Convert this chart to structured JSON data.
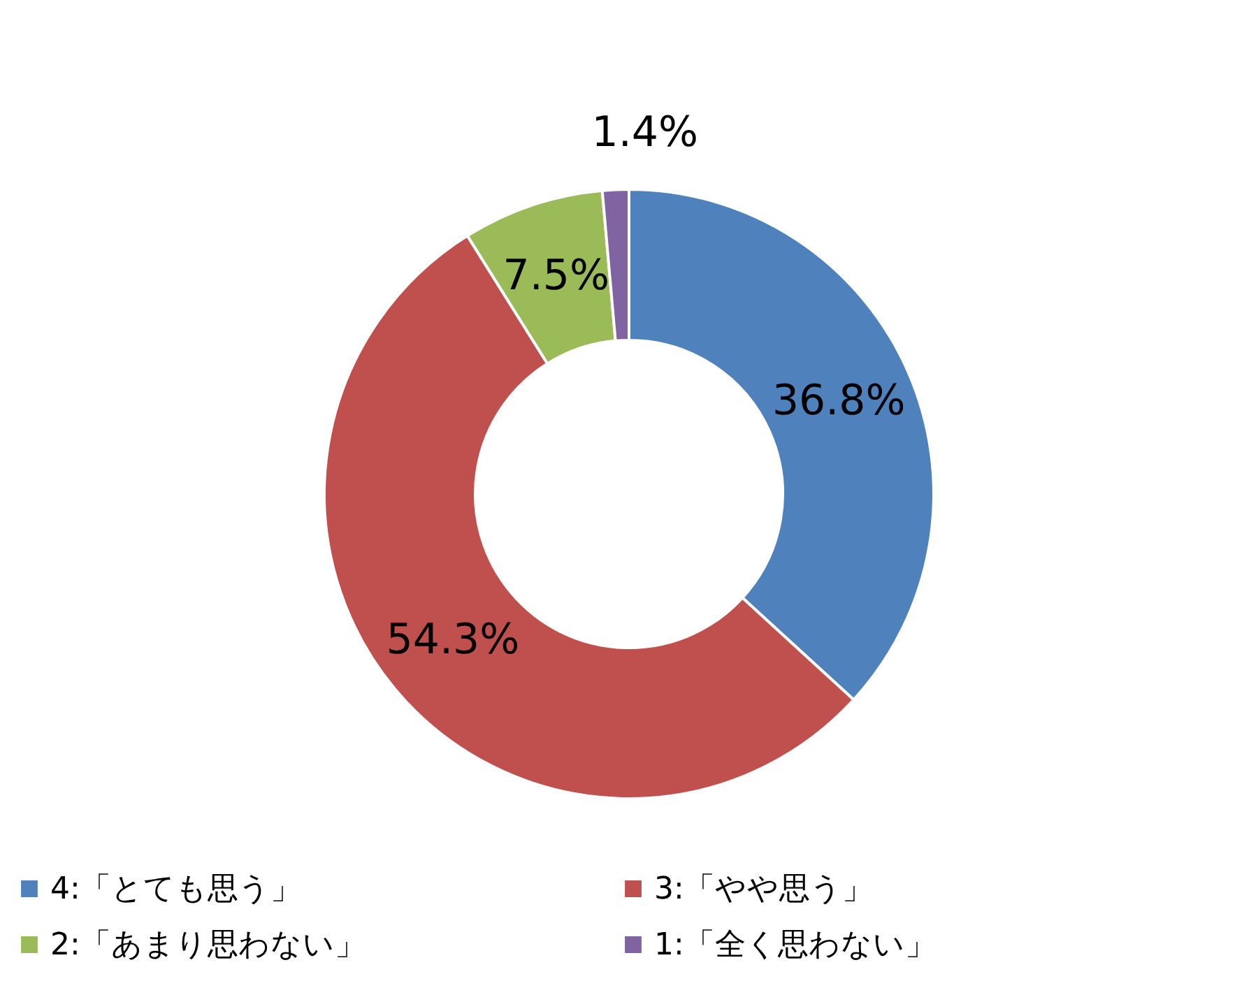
{
  "chart_data": {
    "type": "donut",
    "categories": [
      "4:「とても思う」",
      "3:「やや思う」",
      "2:「あまり思わない」",
      "1:「全く思わない」"
    ],
    "values": [
      36.8,
      54.3,
      7.5,
      1.4
    ],
    "colors": [
      "#4f81bd",
      "#c0504d",
      "#9bbb59",
      "#8064a2"
    ],
    "value_labels": [
      "36.8%",
      "54.3%",
      "7.5%",
      "1.4%"
    ],
    "legend": "bottom"
  }
}
